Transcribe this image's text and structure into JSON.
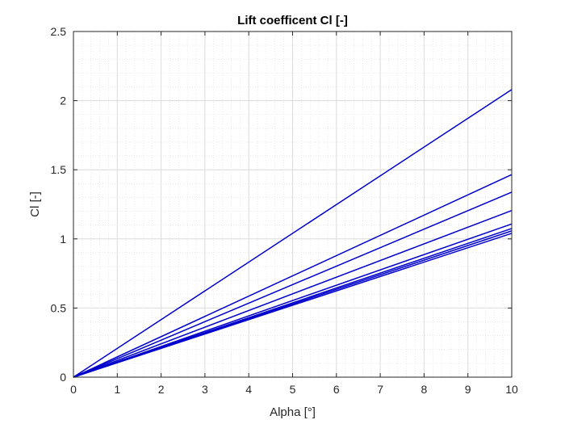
{
  "chart_data": {
    "type": "line",
    "title": "Lift coefficent Cl [-]",
    "xlabel": "Alpha [°]",
    "ylabel": "Cl [-]",
    "xlim": [
      0,
      10
    ],
    "ylim": [
      0,
      2.5
    ],
    "xticks": [
      0,
      1,
      2,
      3,
      4,
      5,
      6,
      7,
      8,
      9,
      10
    ],
    "xtick_labels": [
      "0",
      "1",
      "2",
      "3",
      "4",
      "5",
      "6",
      "7",
      "8",
      "9",
      "10"
    ],
    "yticks": [
      0,
      0.5,
      1,
      1.5,
      2,
      2.5
    ],
    "ytick_labels": [
      "0",
      "0.5",
      "1",
      "1.5",
      "2",
      "2.5"
    ],
    "grid": true,
    "minor_grid": true,
    "line_color": "#0000cc",
    "series": [
      {
        "x": [
          0,
          10
        ],
        "y": [
          0,
          2.08
        ]
      },
      {
        "x": [
          0,
          10
        ],
        "y": [
          0,
          1.465
        ]
      },
      {
        "x": [
          0,
          10
        ],
        "y": [
          0,
          1.338
        ]
      },
      {
        "x": [
          0,
          10
        ],
        "y": [
          0,
          1.205
        ]
      },
      {
        "x": [
          0,
          10
        ],
        "y": [
          0,
          1.108
        ]
      },
      {
        "x": [
          0,
          10
        ],
        "y": [
          0,
          1.075
        ]
      },
      {
        "x": [
          0,
          10
        ],
        "y": [
          0,
          1.058
        ]
      },
      {
        "x": [
          0,
          10
        ],
        "y": [
          0,
          1.04
        ]
      }
    ]
  }
}
